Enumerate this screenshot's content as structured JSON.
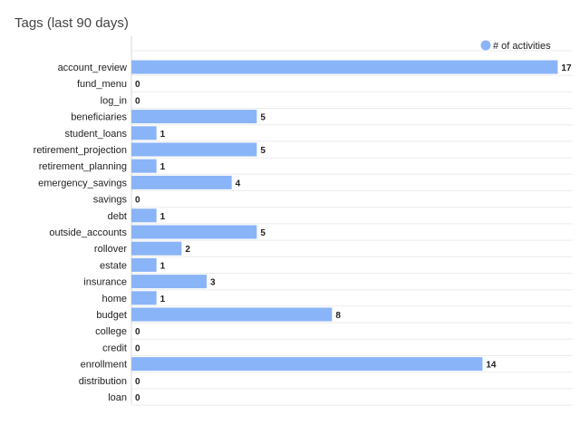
{
  "header": {
    "title": "Tags (last 90 days)"
  },
  "chart_data": {
    "type": "bar",
    "orientation": "horizontal",
    "title": "Tags (last 90 days)",
    "categories": [
      "account_review",
      "fund_menu",
      "log_in",
      "beneficiaries",
      "student_loans",
      "retirement_projection",
      "retirement_planning",
      "emergency_savings",
      "savings",
      "debt",
      "outside_accounts",
      "rollover",
      "estate",
      "insurance",
      "home",
      "budget",
      "college",
      "credit",
      "enrollment",
      "distribution",
      "loan"
    ],
    "series": [
      {
        "name": "# of activities",
        "values": [
          17,
          0,
          0,
          5,
          1,
          5,
          1,
          4,
          0,
          1,
          5,
          2,
          1,
          3,
          1,
          8,
          0,
          0,
          14,
          0,
          0
        ],
        "color": "#8ab4f8"
      }
    ],
    "xlim": [
      0,
      17.6
    ],
    "grid": true,
    "legend": "top-right",
    "data_labels": true
  }
}
